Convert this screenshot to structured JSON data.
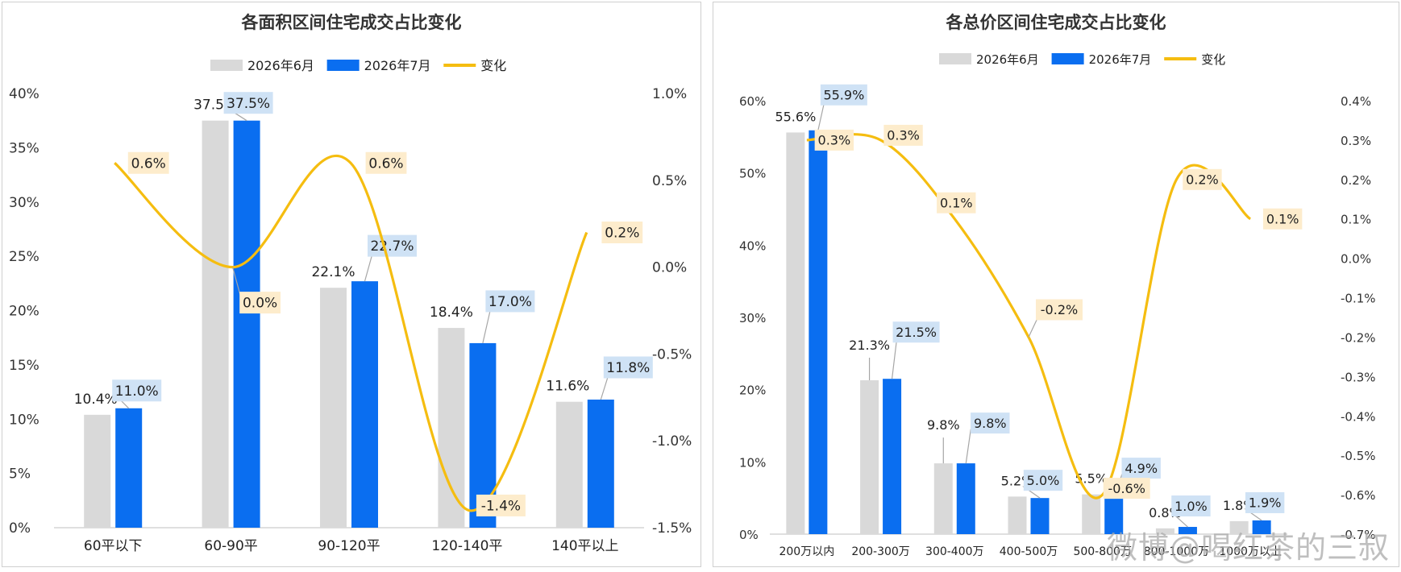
{
  "colors": {
    "june": "#d9d9d9",
    "july": "#0a6ef0",
    "change": "#f5bd10",
    "july_label_bg": "#cfe2f5",
    "change_label_bg": "#fdeccc"
  },
  "watermark": "微博@喝红茶的三叔",
  "chart_data": [
    {
      "type": "bar",
      "title": "各面积区间住宅成交占比变化",
      "legend": [
        "2026年6月",
        "2026年7月",
        "变化"
      ],
      "legend_position": "top",
      "categories": [
        "60平以下",
        "60-90平",
        "90-120平",
        "120-140平",
        "140平以上"
      ],
      "series": [
        {
          "name": "2026年6月",
          "values": [
            10.4,
            37.5,
            22.1,
            18.4,
            11.6
          ],
          "labels": [
            "10.4%",
            "37.5%",
            "22.1%",
            "18.4%",
            "11.6%"
          ]
        },
        {
          "name": "2026年7月",
          "values": [
            11.0,
            37.5,
            22.7,
            17.0,
            11.8
          ],
          "labels": [
            "11.0%",
            "37.5%",
            "22.7%",
            "17.0%",
            "11.8%"
          ]
        },
        {
          "name": "变化",
          "type": "line",
          "axis": "right",
          "values": [
            0.6,
            0.0,
            0.6,
            -1.4,
            0.2
          ],
          "labels": [
            "0.6%",
            "0.0%",
            "0.6%",
            "-1.4%",
            "0.2%"
          ]
        }
      ],
      "ylim": [
        0,
        40
      ],
      "yticks": [
        "0%",
        "5%",
        "10%",
        "15%",
        "20%",
        "25%",
        "30%",
        "35%",
        "40%"
      ],
      "y2lim": [
        -1.5,
        1.0
      ],
      "y2ticks": [
        "-1.5%",
        "-1.0%",
        "-0.5%",
        "0.0%",
        "0.5%",
        "1.0%"
      ],
      "grid": false
    },
    {
      "type": "bar",
      "title": "各总价区间住宅成交占比变化",
      "legend": [
        "2026年6月",
        "2026年7月",
        "变化"
      ],
      "legend_position": "top",
      "categories": [
        "200万以内",
        "200-300万",
        "300-400万",
        "400-500万",
        "500-800万",
        "800-1000万",
        "1000万以上"
      ],
      "series": [
        {
          "name": "2026年6月",
          "values": [
            55.6,
            21.3,
            9.8,
            5.2,
            5.5,
            0.8,
            1.8
          ],
          "labels": [
            "55.6%",
            "21.3%",
            "9.8%",
            "5.2%",
            "5.5%",
            "0.8%",
            "1.8%"
          ]
        },
        {
          "name": "2026年7月",
          "values": [
            55.9,
            21.5,
            9.8,
            5.0,
            4.9,
            1.0,
            1.9
          ],
          "labels": [
            "55.9%",
            "21.5%",
            "9.8%",
            "5.0%",
            "4.9%",
            "1.0%",
            "1.9%"
          ]
        },
        {
          "name": "变化",
          "type": "line",
          "axis": "right",
          "values": [
            0.3,
            0.3,
            0.1,
            -0.2,
            -0.6,
            0.2,
            0.1
          ],
          "labels": [
            "0.3%",
            "0.3%",
            "0.1%",
            "-0.2%",
            "-0.6%",
            "0.2%",
            "0.1%"
          ]
        }
      ],
      "ylim": [
        0,
        60
      ],
      "yticks": [
        "0%",
        "10%",
        "20%",
        "30%",
        "40%",
        "50%",
        "60%"
      ],
      "y2lim": [
        -0.7,
        0.4
      ],
      "y2ticks": [
        "-0.7%",
        "-0.6%",
        "-0.5%",
        "-0.4%",
        "-0.3%",
        "-0.2%",
        "-0.1%",
        "0.0%",
        "0.1%",
        "0.2%",
        "0.3%",
        "0.4%"
      ],
      "grid": false
    }
  ]
}
